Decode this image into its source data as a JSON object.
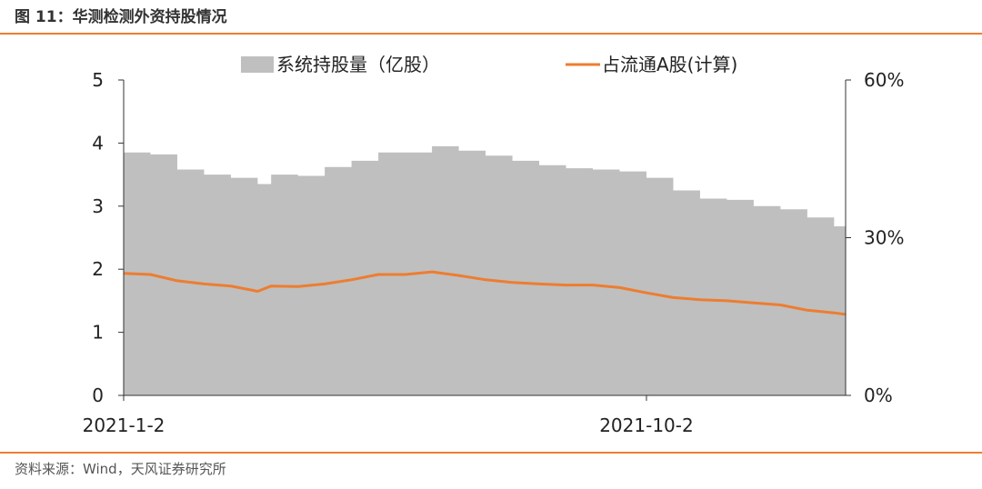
{
  "figure": {
    "title": "图 11：华测检测外资持股情况",
    "source": "资料来源：Wind，天风证券研究所",
    "accent_color": "#ed7d31"
  },
  "chart_data": {
    "type": "area",
    "title": "",
    "legend_position": "top",
    "grid": false,
    "x_ticks": [
      "2021-1-2",
      "2021-10-2"
    ],
    "x_range": [
      "2021-1-2",
      "2022-1-14"
    ],
    "left_axis": {
      "label": "",
      "ticks": [
        "0",
        "1",
        "2",
        "3",
        "4",
        "5"
      ],
      "range": [
        0,
        5
      ]
    },
    "right_axis": {
      "label": "",
      "ticks": [
        "0%",
        "30%",
        "60%"
      ],
      "range": [
        0,
        60
      ]
    },
    "series": [
      {
        "name": "系统持股量（亿股）",
        "kind": "area",
        "axis": "left",
        "color": "#bfbfbf",
        "x": [
          "2021-1-2",
          "2021-1-16",
          "2021-1-30",
          "2021-2-13",
          "2021-2-27",
          "2021-3-13",
          "2021-3-20",
          "2021-4-3",
          "2021-4-17",
          "2021-5-1",
          "2021-5-15",
          "2021-5-29",
          "2021-6-12",
          "2021-6-26",
          "2021-7-10",
          "2021-7-24",
          "2021-8-7",
          "2021-8-21",
          "2021-9-4",
          "2021-9-18",
          "2021-10-2",
          "2021-10-16",
          "2021-10-30",
          "2021-11-13",
          "2021-11-27",
          "2021-12-11",
          "2021-12-25",
          "2022-1-8",
          "2022-1-14"
        ],
        "values": [
          3.85,
          3.82,
          3.58,
          3.5,
          3.45,
          3.35,
          3.5,
          3.48,
          3.62,
          3.72,
          3.85,
          3.85,
          3.95,
          3.88,
          3.8,
          3.72,
          3.65,
          3.6,
          3.58,
          3.55,
          3.45,
          3.25,
          3.12,
          3.1,
          3.0,
          2.95,
          2.82,
          2.68,
          2.62
        ]
      },
      {
        "name": "占流通A股(计算)",
        "kind": "line",
        "axis": "right",
        "color": "#ed7d31",
        "x": [
          "2021-1-2",
          "2021-1-16",
          "2021-1-30",
          "2021-2-13",
          "2021-2-27",
          "2021-3-13",
          "2021-3-20",
          "2021-4-3",
          "2021-4-17",
          "2021-5-1",
          "2021-5-15",
          "2021-5-29",
          "2021-6-12",
          "2021-6-26",
          "2021-7-10",
          "2021-7-24",
          "2021-8-7",
          "2021-8-21",
          "2021-9-4",
          "2021-9-18",
          "2021-10-2",
          "2021-10-16",
          "2021-10-30",
          "2021-11-13",
          "2021-11-27",
          "2021-12-11",
          "2021-12-25",
          "2022-1-8",
          "2022-1-14"
        ],
        "values": [
          23.2,
          23.0,
          21.8,
          21.2,
          20.8,
          19.8,
          20.8,
          20.7,
          21.2,
          22.0,
          23.0,
          23.0,
          23.5,
          22.8,
          22.0,
          21.5,
          21.2,
          21.0,
          21.0,
          20.5,
          19.5,
          18.6,
          18.2,
          18.0,
          17.6,
          17.2,
          16.2,
          15.7,
          15.4
        ]
      }
    ]
  }
}
